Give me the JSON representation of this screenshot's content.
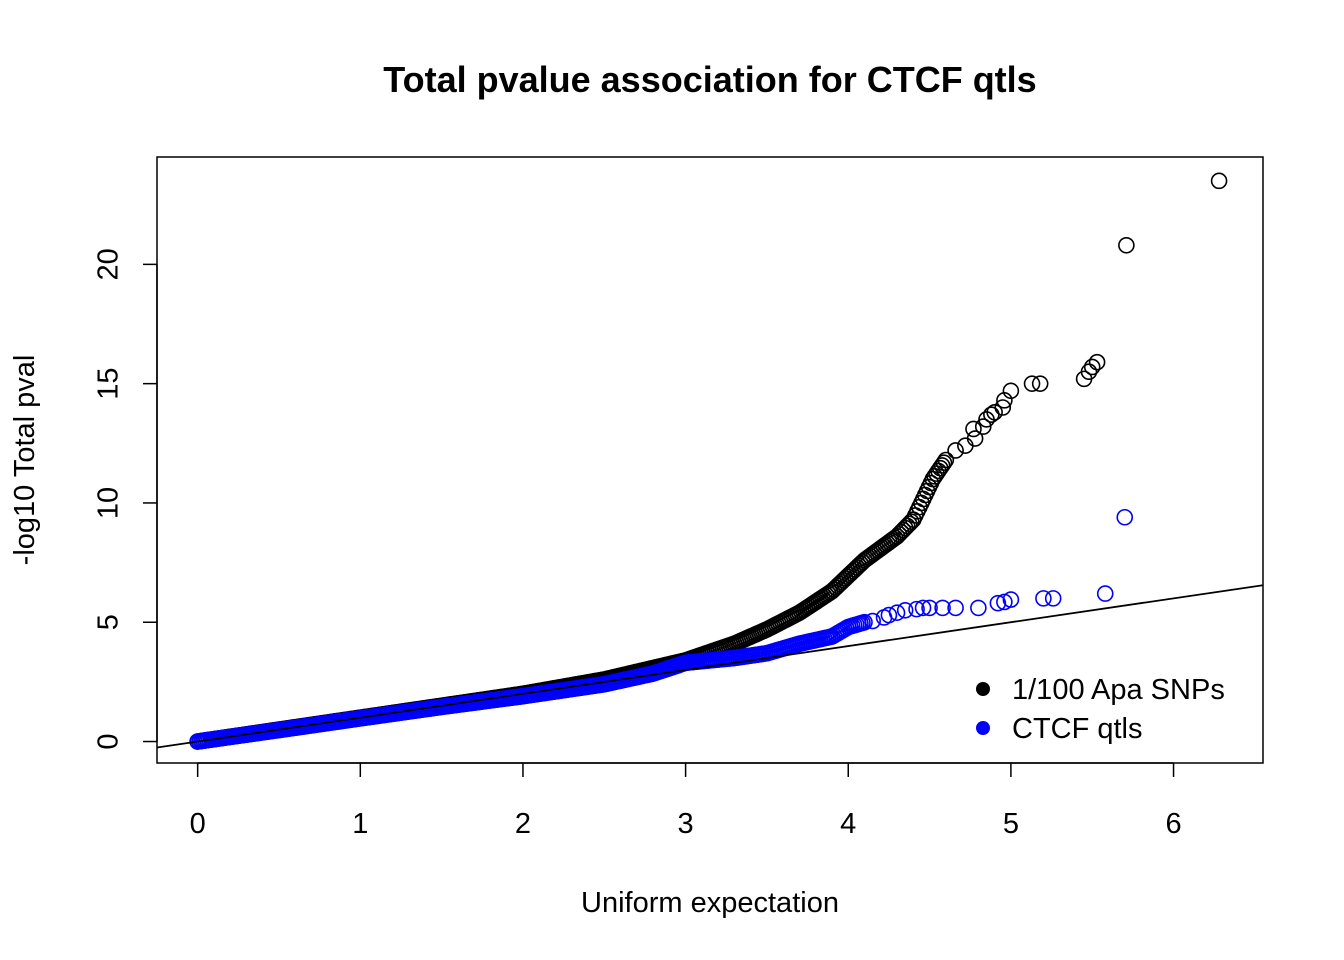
{
  "chart_data": {
    "type": "scatter",
    "title": "Total pvalue association for CTCF qtls",
    "xlabel": "Uniform expectation",
    "ylabel": "-log10 Total pval",
    "xlim": [
      -0.25,
      6.55
    ],
    "ylim": [
      -0.9,
      24.5
    ],
    "x_ticks": [
      0,
      1,
      2,
      3,
      4,
      5,
      6
    ],
    "y_ticks": [
      0,
      5,
      10,
      15,
      20
    ],
    "grid": false,
    "legend_position": "bottom-right",
    "reference_line": {
      "slope": 1,
      "intercept": 0
    },
    "series": [
      {
        "name": "1/100 Apa SNPs",
        "color": "#000000",
        "marker": "open-circle",
        "curve": [
          [
            0.0,
            0.0
          ],
          [
            0.5,
            0.5
          ],
          [
            1.0,
            1.0
          ],
          [
            1.5,
            1.5
          ],
          [
            2.0,
            2.0
          ],
          [
            2.5,
            2.6
          ],
          [
            3.0,
            3.4
          ],
          [
            3.3,
            4.1
          ],
          [
            3.5,
            4.7
          ],
          [
            3.7,
            5.4
          ],
          [
            3.9,
            6.3
          ],
          [
            4.1,
            7.6
          ],
          [
            4.3,
            8.6
          ],
          [
            4.4,
            9.3
          ],
          [
            4.45,
            10.0
          ],
          [
            4.52,
            11.0
          ],
          [
            4.6,
            11.8
          ]
        ],
        "points": [
          [
            4.66,
            12.2
          ],
          [
            4.72,
            12.4
          ],
          [
            4.78,
            12.7
          ],
          [
            4.77,
            13.1
          ],
          [
            4.83,
            13.2
          ],
          [
            4.85,
            13.5
          ],
          [
            4.88,
            13.7
          ],
          [
            4.9,
            13.8
          ],
          [
            4.95,
            14.0
          ],
          [
            4.96,
            14.3
          ],
          [
            5.0,
            14.7
          ],
          [
            5.13,
            15.0
          ],
          [
            5.18,
            15.0
          ],
          [
            5.45,
            15.2
          ],
          [
            5.48,
            15.5
          ],
          [
            5.5,
            15.7
          ],
          [
            5.53,
            15.9
          ],
          [
            5.71,
            20.8
          ],
          [
            6.28,
            23.5
          ]
        ]
      },
      {
        "name": "CTCF qtls",
        "color": "#0000ff",
        "marker": "open-circle",
        "curve": [
          [
            0.0,
            0.0
          ],
          [
            0.5,
            0.48
          ],
          [
            1.0,
            0.97
          ],
          [
            1.5,
            1.45
          ],
          [
            2.0,
            1.9
          ],
          [
            2.5,
            2.4
          ],
          [
            2.8,
            2.85
          ],
          [
            3.0,
            3.3
          ],
          [
            3.3,
            3.5
          ],
          [
            3.5,
            3.7
          ],
          [
            3.7,
            4.1
          ],
          [
            3.9,
            4.4
          ],
          [
            4.0,
            4.8
          ],
          [
            4.1,
            5.0
          ]
        ],
        "points": [
          [
            4.15,
            5.05
          ],
          [
            4.22,
            5.2
          ],
          [
            4.25,
            5.3
          ],
          [
            4.3,
            5.4
          ],
          [
            4.35,
            5.5
          ],
          [
            4.42,
            5.55
          ],
          [
            4.46,
            5.6
          ],
          [
            4.5,
            5.6
          ],
          [
            4.58,
            5.6
          ],
          [
            4.66,
            5.6
          ],
          [
            4.8,
            5.6
          ],
          [
            4.92,
            5.8
          ],
          [
            4.96,
            5.85
          ],
          [
            5.0,
            5.95
          ],
          [
            5.2,
            6.0
          ],
          [
            5.26,
            6.0
          ],
          [
            5.58,
            6.2
          ],
          [
            5.7,
            9.4
          ]
        ]
      }
    ]
  }
}
